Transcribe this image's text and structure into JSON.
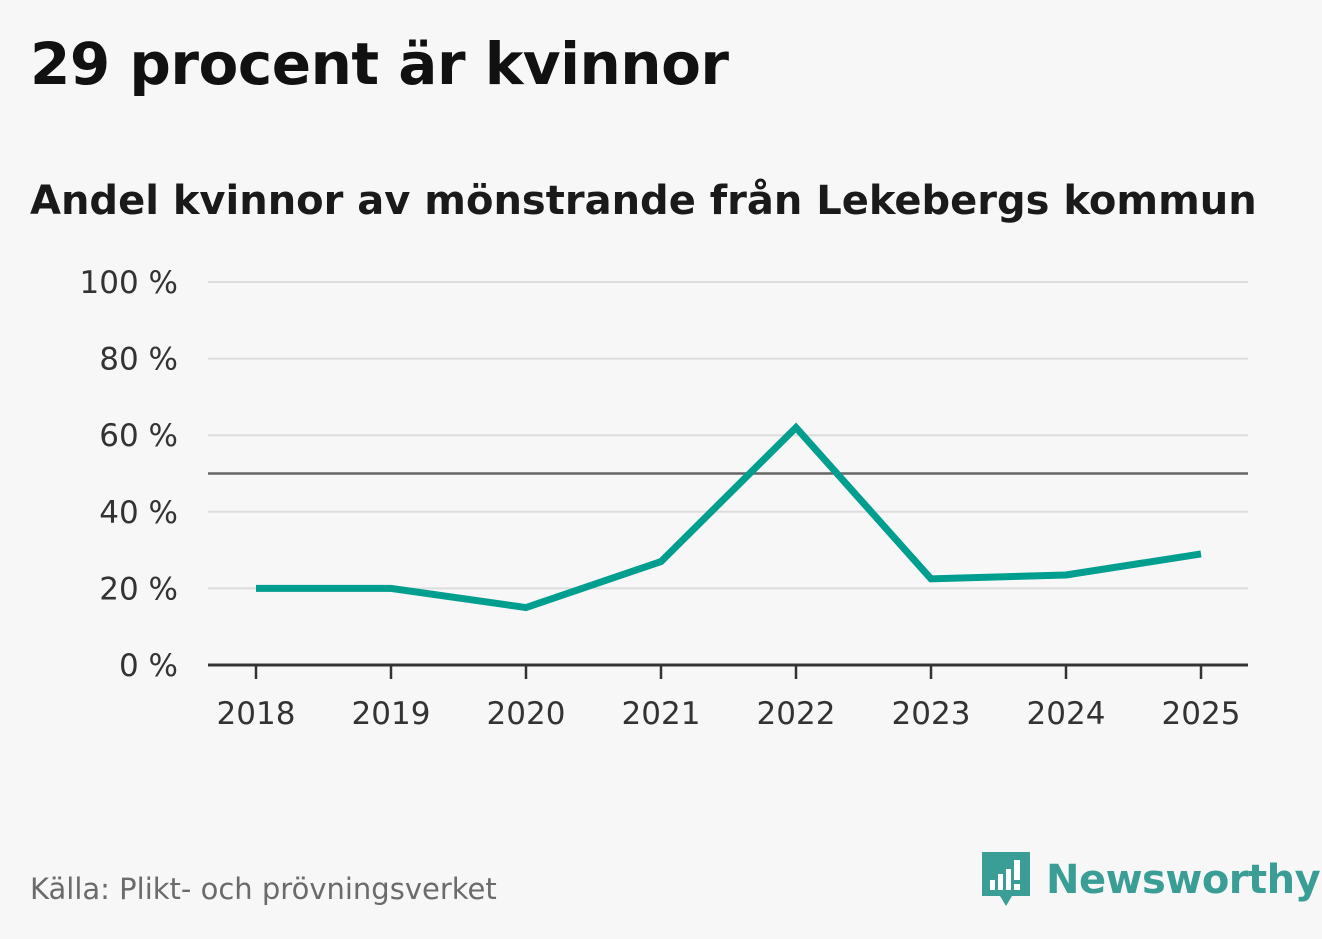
{
  "chart_data": {
    "type": "line",
    "title": "29 procent är kvinnor",
    "subtitle": "Andel kvinnor av mönstrande från Lekebergs kommun",
    "categories": [
      "2018",
      "2019",
      "2020",
      "2021",
      "2022",
      "2023",
      "2024",
      "2025"
    ],
    "series": [
      {
        "name": "Andel kvinnor",
        "values": [
          20,
          20,
          15,
          27,
          62,
          22.5,
          23.5,
          29
        ]
      }
    ],
    "ylim": [
      0,
      100
    ],
    "yticks": [
      0,
      20,
      40,
      60,
      80,
      100
    ],
    "ytick_labels": [
      "0 %",
      "20 %",
      "40 %",
      "60 %",
      "80 %",
      "100 %"
    ],
    "reference_line": 50,
    "grid": true,
    "colors": {
      "line": "#009e8f",
      "grid": "#dddddd",
      "reference": "#666666",
      "axis": "#333333"
    }
  },
  "footer": {
    "source": "Källa: Plikt- och prövningsverket",
    "brand": "Newsworthy",
    "brand_color": "#3a9e96"
  }
}
